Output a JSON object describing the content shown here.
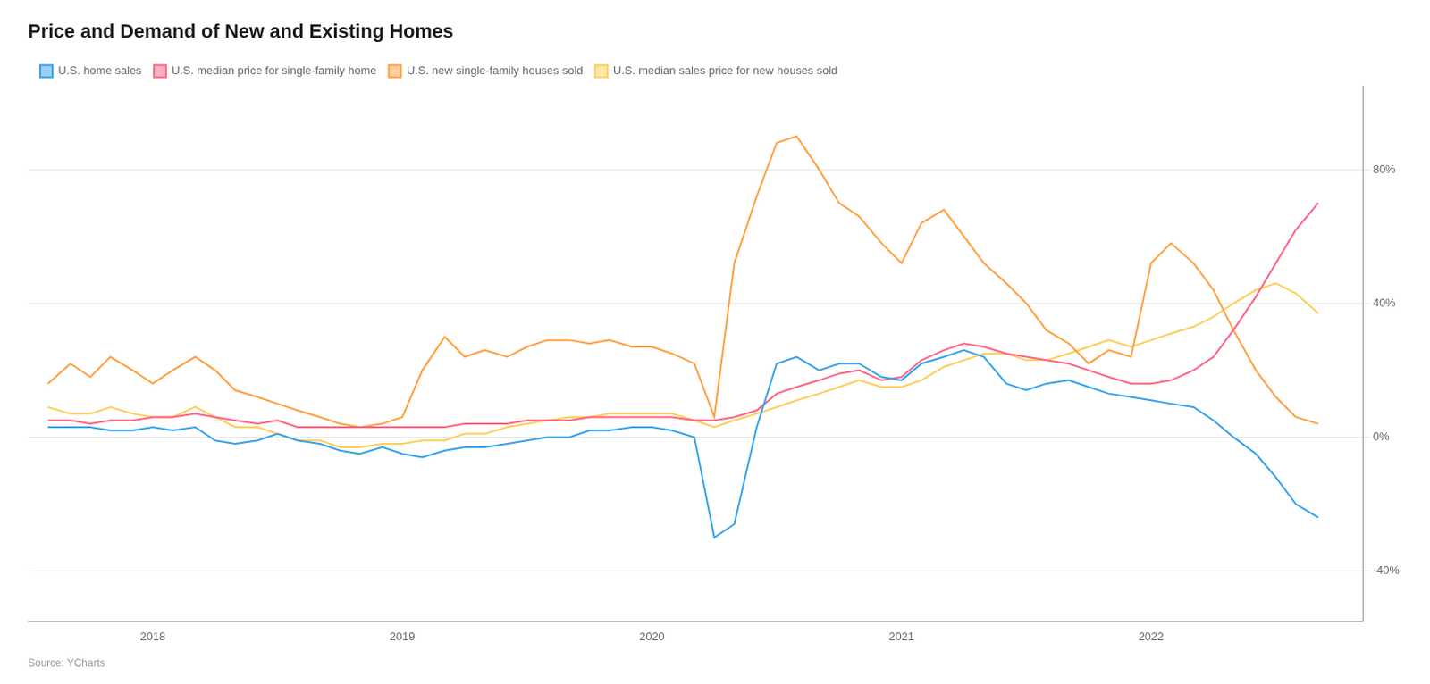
{
  "chart_data": {
    "type": "line",
    "title": "Price and Demand of New and Existing Homes",
    "source": "Source: YCharts",
    "x": [
      2017.58,
      2017.67,
      2017.75,
      2017.83,
      2017.92,
      2018.0,
      2018.08,
      2018.17,
      2018.25,
      2018.33,
      2018.42,
      2018.5,
      2018.58,
      2018.67,
      2018.75,
      2018.83,
      2018.92,
      2019.0,
      2019.08,
      2019.17,
      2019.25,
      2019.33,
      2019.42,
      2019.5,
      2019.58,
      2019.67,
      2019.75,
      2019.83,
      2019.92,
      2020.0,
      2020.08,
      2020.17,
      2020.25,
      2020.33,
      2020.42,
      2020.5,
      2020.58,
      2020.67,
      2020.75,
      2020.83,
      2020.92,
      2021.0,
      2021.08,
      2021.17,
      2021.25,
      2021.33,
      2021.42,
      2021.5,
      2021.58,
      2021.67,
      2021.75,
      2021.83,
      2021.92,
      2022.0,
      2022.08,
      2022.17,
      2022.25,
      2022.33,
      2022.42,
      2022.5,
      2022.58,
      2022.67
    ],
    "series": [
      {
        "name": "U.S. home sales",
        "values": [
          3,
          3,
          3,
          2,
          2,
          3,
          2,
          3,
          -1,
          -2,
          -1,
          1,
          -1,
          -2,
          -4,
          -5,
          -3,
          -5,
          -6,
          -4,
          -3,
          -3,
          -2,
          -1,
          0,
          0,
          2,
          2,
          3,
          3,
          2,
          0,
          -30,
          -26,
          3,
          22,
          24,
          20,
          22,
          22,
          18,
          17,
          22,
          24,
          26,
          24,
          16,
          14,
          16,
          17,
          15,
          13,
          12,
          11,
          10,
          9,
          5,
          0,
          -5,
          -12,
          -20,
          -24
        ]
      },
      {
        "name": "U.S. median price for single-family home",
        "values": [
          5,
          5,
          4,
          5,
          5,
          6,
          6,
          7,
          6,
          5,
          4,
          5,
          3,
          3,
          3,
          3,
          3,
          3,
          3,
          3,
          4,
          4,
          4,
          5,
          5,
          5,
          6,
          6,
          6,
          6,
          6,
          5,
          5,
          6,
          8,
          13,
          15,
          17,
          19,
          20,
          17,
          18,
          23,
          26,
          28,
          27,
          25,
          24,
          23,
          22,
          20,
          18,
          16,
          16,
          17,
          20,
          24,
          32,
          42,
          52,
          62,
          70
        ]
      },
      {
        "name": "U.S. new single-family houses sold",
        "values": [
          16,
          22,
          18,
          24,
          20,
          16,
          20,
          24,
          20,
          14,
          12,
          10,
          8,
          6,
          4,
          3,
          4,
          6,
          20,
          30,
          24,
          26,
          24,
          27,
          29,
          29,
          28,
          29,
          27,
          27,
          25,
          22,
          6,
          52,
          72,
          88,
          90,
          80,
          70,
          66,
          58,
          52,
          64,
          68,
          60,
          52,
          46,
          40,
          32,
          28,
          22,
          26,
          24,
          52,
          58,
          52,
          44,
          32,
          20,
          12,
          6,
          4
        ]
      },
      {
        "name": "U.S. median sales price for new houses sold",
        "values": [
          9,
          7,
          7,
          9,
          7,
          6,
          6,
          9,
          6,
          3,
          3,
          1,
          -1,
          -1,
          -3,
          -3,
          -2,
          -2,
          -1,
          -1,
          1,
          1,
          3,
          4,
          5,
          6,
          6,
          7,
          7,
          7,
          7,
          5,
          3,
          5,
          7,
          9,
          11,
          13,
          15,
          17,
          15,
          15,
          17,
          21,
          23,
          25,
          25,
          23,
          23,
          25,
          27,
          29,
          27,
          29,
          31,
          33,
          36,
          40,
          44,
          46,
          43,
          37
        ]
      }
    ],
    "xlim": [
      2017.5,
      2022.85
    ],
    "xticks": [
      2018,
      2019,
      2020,
      2021,
      2022
    ],
    "ylim": [
      -55,
      105
    ],
    "yticks": [
      {
        "value": -40,
        "label": "-40%"
      },
      {
        "value": 0,
        "label": "0%"
      },
      {
        "value": 40,
        "label": "40%"
      },
      {
        "value": 80,
        "label": "80%"
      }
    ],
    "grid": "y",
    "legend": "top"
  }
}
